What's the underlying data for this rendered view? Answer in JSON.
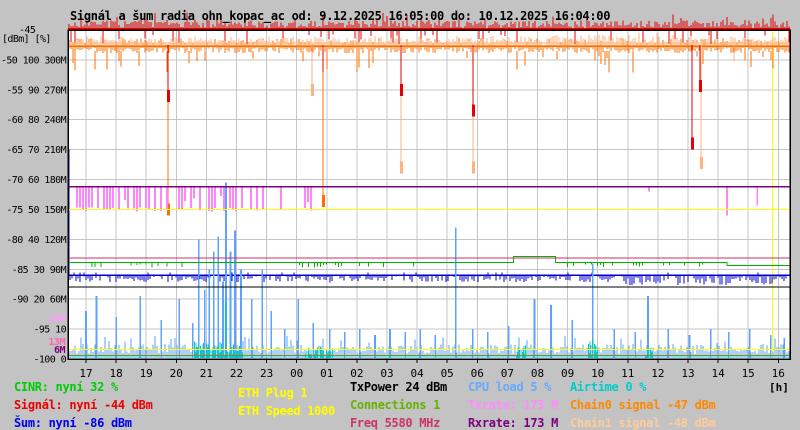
{
  "title": "Signál a šum radia ohn_kopac_ac od: 9.12.2025 16:05:00 do: 10.12.2025 16:04:00",
  "axes": {
    "top_left_tick": "-45",
    "units_label": "[dBm] [%]",
    "left_rows": [
      "-50 100 300M",
      "-55 90 270M",
      "-60 80 240M",
      "-65 70 210M",
      "-70 60 180M",
      "-75 50 150M",
      "-80 40 120M",
      "-85 30 90M",
      "-90 20 60M",
      "-95 10",
      "-100 0"
    ],
    "hours": [
      "17",
      "18",
      "19",
      "20",
      "21",
      "22",
      "23",
      "00",
      "01",
      "02",
      "03",
      "04",
      "05",
      "06",
      "07",
      "08",
      "09",
      "10",
      "11",
      "12",
      "13",
      "14",
      "15",
      "16"
    ],
    "hour_unit": "[h]",
    "rate_tags": [
      {
        "text": "39M",
        "color": "#ff99ff"
      },
      {
        "text": "13M",
        "color": "#ff66b3"
      },
      {
        "text": "6M",
        "color": "#7d007d"
      }
    ]
  },
  "legend": {
    "cinr": {
      "text": "CINR: nyní 32 %",
      "color": "#00cc00"
    },
    "signal": {
      "text": "Signál: nyní -44 dBm",
      "color": "#ee0000"
    },
    "sum": {
      "text": "Šum: nyní -86 dBm",
      "color": "#0000ee"
    },
    "eth_plug": {
      "text": "ETH Plug 1",
      "color": "#ffff00"
    },
    "eth_speed": {
      "text": "ETH Speed 1000",
      "color": "#ffff00"
    },
    "txpower": {
      "text": "TxPower 24 dBm",
      "color": "#000000"
    },
    "connections": {
      "text": "Connections 1",
      "color": "#66b300"
    },
    "freq": {
      "text": "Freq 5580 MHz",
      "color": "#cc3366"
    },
    "cpu": {
      "text": "CPU load 5 %",
      "color": "#66aaff"
    },
    "txrate": {
      "text": "Txrate: 173 M",
      "color": "#ff8cff"
    },
    "rxrate": {
      "text": "Rxrate: 173 M",
      "color": "#7d007d"
    },
    "airtime": {
      "text": "Airtime 0 %",
      "color": "#00cccc"
    },
    "chain0": {
      "text": "Chain0 signal -47 dBm",
      "color": "#ff8800"
    },
    "chain1": {
      "text": "Chain1 signal -48 dBm",
      "color": "#ffcc99"
    }
  },
  "chart_data": {
    "type": "line",
    "title": "Signál a šum radia ohn_kopac_ac",
    "time_window": {
      "from": "9.12.2025 16:05:00",
      "to": "10.12.2025 16:04:00",
      "unit": "[h]"
    },
    "x_hours": [
      "17",
      "18",
      "19",
      "20",
      "21",
      "22",
      "23",
      "00",
      "01",
      "02",
      "03",
      "04",
      "05",
      "06",
      "07",
      "08",
      "09",
      "10",
      "11",
      "12",
      "13",
      "14",
      "15",
      "16"
    ],
    "y_axes": {
      "dbm": {
        "label": "[dBm]",
        "top": -45,
        "bottom": -100,
        "step": 5
      },
      "percent": {
        "label": "[%]",
        "top": 100,
        "bottom": 0,
        "step": 10
      },
      "rate_m": {
        "label": "M",
        "top": 300,
        "bottom": 0,
        "step": 30
      }
    },
    "seed": 1234,
    "series": [
      {
        "id": "signal",
        "label": "Signál",
        "axis": "dbm",
        "color": "#e60000",
        "now": -44,
        "base": -44,
        "deep_spikes": [
          [
            2.72,
            -57
          ],
          [
            7.87,
            -52
          ],
          [
            10.47,
            -56
          ],
          [
            12.86,
            -59.5
          ],
          [
            20.13,
            -65
          ],
          [
            20.4,
            -55.4
          ]
        ]
      },
      {
        "id": "chain0",
        "label": "Chain0 signal",
        "axis": "dbm",
        "color": "#ff6f00",
        "now": -47,
        "base": -47.7,
        "deep_spikes": [
          [
            2.72,
            -76
          ],
          [
            7.87,
            -74.6
          ],
          [
            20.13,
            -65
          ],
          [
            22.56,
            -48.5
          ]
        ]
      },
      {
        "id": "chain1",
        "label": "Chain1 signal",
        "axis": "dbm",
        "color": "#ffb27c",
        "now": -48,
        "base": -47.2,
        "dense_range": [
          15.2,
          20.0
        ],
        "deep_spikes": [
          [
            7.51,
            -56
          ],
          [
            10.47,
            -69
          ],
          [
            12.86,
            -69
          ],
          [
            20.43,
            -68.2
          ],
          [
            21.53,
            -50.3
          ]
        ]
      },
      {
        "id": "sum",
        "label": "Šum",
        "axis": "dbm",
        "color": "#0000cc",
        "now": -86,
        "base": -86,
        "deep_range": [
          17.4,
          23.1
        ],
        "start_edge_from": -65
      },
      {
        "id": "cinr",
        "label": "CINR",
        "axis": "percent",
        "color": "#00b400",
        "now": 32,
        "segments": [
          [
            -0.6,
            32.3
          ],
          [
            14.2,
            32.3
          ],
          [
            14.2,
            34.3
          ],
          [
            15.6,
            34.3
          ],
          [
            15.6,
            32.3
          ],
          [
            21.3,
            32.3
          ],
          [
            21.3,
            31.3
          ],
          [
            23.4,
            31.3
          ]
        ],
        "dip_ranges": [
          [
            0.2,
            3.2
          ],
          [
            6.8,
            11.0
          ],
          [
            16.0,
            20.5
          ]
        ]
      },
      {
        "id": "txpower",
        "label": "TxPower",
        "axis": "percent",
        "color": "#000000",
        "now": 24,
        "base": 24
      },
      {
        "id": "freq",
        "label": "Freq",
        "axis": "percent",
        "color": "#c83264",
        "now": 5580,
        "render_level": 33.8
      },
      {
        "id": "rxrate",
        "label": "Rxrate",
        "axis": "rate_m",
        "color": "#7d007d",
        "now": 173,
        "base": 173
      },
      {
        "id": "txrate",
        "label": "Txrate",
        "axis": "rate_m",
        "color": "#ff85ff",
        "now": 173,
        "base": 173,
        "dip_range": [
          -0.5,
          7.5
        ],
        "dip_to": 150,
        "deep_spikes": [
          [
            18.7,
            168
          ],
          [
            21.3,
            144
          ],
          [
            22.3,
            154
          ]
        ]
      },
      {
        "id": "eth_speed",
        "label": "ETH Speed",
        "axis": "rate_m",
        "color": "#ffff00",
        "now": 1000,
        "render_level": 150
      },
      {
        "id": "eth_plug",
        "label": "ETH Plug",
        "axis": "percent",
        "color": "#ffff00",
        "now": 1,
        "render_level": 3.2
      },
      {
        "id": "eth_base",
        "label": "",
        "axis": "percent",
        "color": "#8c8c00",
        "render_level": 1.2
      },
      {
        "id": "cpu",
        "label": "CPU load",
        "axis": "percent",
        "color": "#5da2ff",
        "now": 5,
        "spikes": [
          [
            0.0,
            16
          ],
          [
            0.35,
            21
          ],
          [
            1.0,
            14
          ],
          [
            1.8,
            21
          ],
          [
            2.5,
            13
          ],
          [
            3.1,
            20
          ],
          [
            3.55,
            12
          ],
          [
            3.75,
            40
          ],
          [
            3.95,
            23
          ],
          [
            4.1,
            30
          ],
          [
            4.25,
            36
          ],
          [
            4.4,
            41
          ],
          [
            4.55,
            26
          ],
          [
            4.65,
            59
          ],
          [
            4.8,
            36
          ],
          [
            4.95,
            43
          ],
          [
            5.15,
            30
          ],
          [
            5.5,
            20
          ],
          [
            5.85,
            30
          ],
          [
            6.15,
            16
          ],
          [
            6.6,
            10
          ],
          [
            7.05,
            20
          ],
          [
            7.55,
            12
          ],
          [
            8.1,
            10
          ],
          [
            8.6,
            9
          ],
          [
            9.1,
            10
          ],
          [
            9.6,
            8
          ],
          [
            10.1,
            10
          ],
          [
            10.6,
            9
          ],
          [
            11.1,
            10
          ],
          [
            11.6,
            8
          ],
          [
            12.29,
            44
          ],
          [
            12.85,
            10
          ],
          [
            13.35,
            9
          ],
          [
            14.05,
            11
          ],
          [
            14.9,
            20
          ],
          [
            15.45,
            18
          ],
          [
            16.15,
            13
          ],
          [
            16.84,
            32
          ],
          [
            17.55,
            10
          ],
          [
            18.25,
            9
          ],
          [
            18.67,
            21
          ],
          [
            19.35,
            10
          ],
          [
            20.05,
            8
          ],
          [
            20.75,
            10
          ],
          [
            21.35,
            9
          ],
          [
            22.05,
            10
          ],
          [
            22.75,
            8
          ],
          [
            23.2,
            7
          ]
        ]
      },
      {
        "id": "airtime",
        "label": "Airtime",
        "axis": "percent",
        "color": "#00c8c8",
        "now": 0,
        "bursts": [
          [
            3.6,
            5.2,
            4.5
          ],
          [
            7.3,
            8.2,
            3
          ],
          [
            14.3,
            14.65,
            4.5
          ],
          [
            16.7,
            17.0,
            5
          ],
          [
            18.6,
            18.8,
            3.5
          ]
        ],
        "spikes": [
          [
            4.65,
            19
          ],
          [
            16.84,
            6.5
          ]
        ]
      }
    ],
    "markers": {
      "vline_hour": 22.8,
      "vline_color": "#ffff00"
    }
  }
}
